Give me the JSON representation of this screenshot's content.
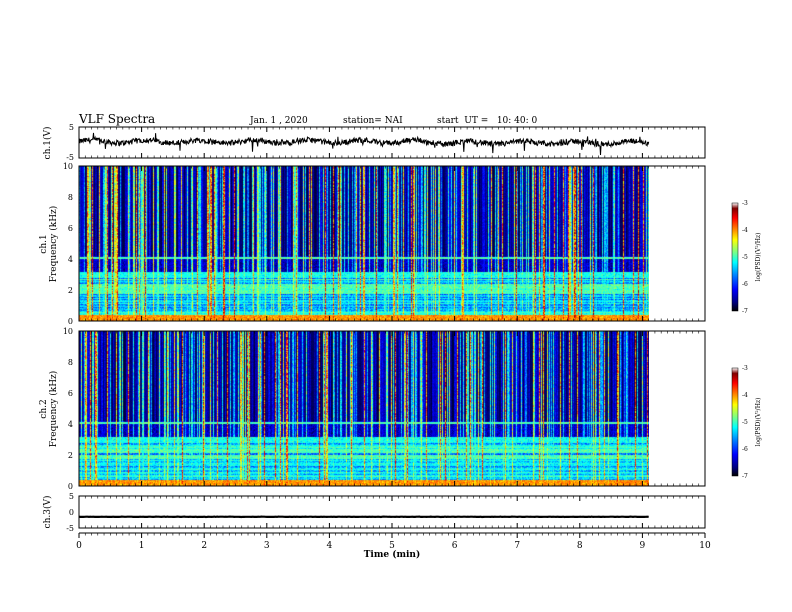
{
  "header": {
    "title": "VLF Spectra",
    "date": "Jan. 1 , 2020",
    "station": "station= NAI",
    "start": "start  UT =   10: 40: 0"
  },
  "colors": {
    "trace": "#000000",
    "colormap": [
      "#000000",
      "#00007f",
      "#0000ff",
      "#0080ff",
      "#00ffff",
      "#80ff80",
      "#ffff00",
      "#ff8000",
      "#ff0000",
      "#7f0000",
      "#ffffff"
    ]
  },
  "chart_data": [
    {
      "type": "line",
      "panel": "ch1-waveform",
      "ylabel": "ch.1(V)",
      "ylim": [
        -5,
        5
      ],
      "yticks": [
        "5",
        "-5"
      ],
      "xlim": [
        0,
        10
      ],
      "x_units": "min",
      "series": [
        {
          "x_start": 0,
          "x_end": 9.1,
          "baseline": 0.3,
          "amplitude": 1.0
        }
      ]
    },
    {
      "type": "heatmap",
      "panel": "ch1-spectrogram",
      "ylabel_top": "ch.1",
      "ylabel": "Frequency (kHz)",
      "ylim": [
        0,
        10
      ],
      "yticks": [
        "0",
        "2",
        "4",
        "6",
        "8",
        "10"
      ],
      "xlim": [
        0,
        10
      ],
      "data_extent_min": 9.1,
      "colorbar": {
        "label": "log(PSD)(V²/Hz)",
        "range": [
          -7,
          -3
        ],
        "ticks": [
          "-3",
          "-4",
          "-5",
          "-6",
          "-7"
        ]
      }
    },
    {
      "type": "heatmap",
      "panel": "ch2-spectrogram",
      "ylabel_top": "ch.2",
      "ylabel": "Frequency (kHz)",
      "ylim": [
        0,
        10
      ],
      "yticks": [
        "0",
        "2",
        "4",
        "6",
        "8",
        "10"
      ],
      "xlim": [
        0,
        10
      ],
      "data_extent_min": 9.1,
      "colorbar": {
        "label": "log(PSD)(V²/Hz)",
        "range": [
          -7,
          -3
        ],
        "ticks": [
          "-3",
          "-4",
          "-5",
          "-6",
          "-7"
        ]
      }
    },
    {
      "type": "line",
      "panel": "ch3-waveform",
      "ylabel": "ch.3(V)",
      "ylim": [
        -5,
        5
      ],
      "yticks": [
        "5",
        "0",
        "-5"
      ],
      "xlim": [
        0,
        10
      ],
      "xlabel": "Time (min)",
      "xticks": [
        "0",
        "1",
        "2",
        "3",
        "4",
        "5",
        "6",
        "7",
        "8",
        "9",
        "10"
      ],
      "series": [
        {
          "x_start": 0,
          "x_end": 9.1,
          "baseline": -1.5,
          "amplitude": 0.1
        }
      ]
    }
  ]
}
